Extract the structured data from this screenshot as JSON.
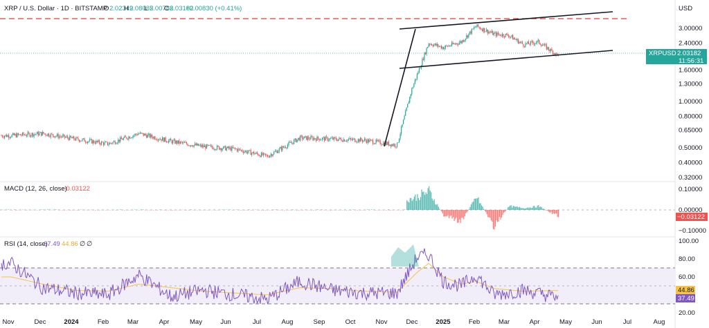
{
  "header": {
    "title": "XRP / U.S. Dollar · 1D · BITSTAMP",
    "ohlc": [
      {
        "label": "O",
        "value": "2.02349"
      },
      {
        "label": "H",
        "value": "2.08085"
      },
      {
        "label": "L",
        "value": "2.00788"
      },
      {
        "label": "C",
        "value": "2.03182"
      }
    ],
    "change": "+0.00830 (+0.41%)",
    "currency": "USD"
  },
  "price_tag": {
    "symbol": "XRPUSD",
    "value": "2.03182",
    "countdown": "11:56:31"
  },
  "macd": {
    "title": "MACD (12, 26, close)",
    "value": "−0.03122",
    "tag": "−0.03122"
  },
  "rsi": {
    "title": "RSI (14, close)",
    "value1": "37.49",
    "value2": "44.86",
    "na1": "∅",
    "na2": "∅",
    "tag1": "44.86",
    "tag2": "37.49"
  },
  "colors": {
    "up": "#26a69a",
    "down": "#ef5350",
    "resistance": "#e53935",
    "rsi_line": "#7e57c2",
    "rsi_ma": "#f6c344",
    "rsi_band": "#ede7f6",
    "price_tag": "#26a69a"
  },
  "chart_data": [
    {
      "type": "candlestick",
      "title": "XRP / U.S. Dollar · 1D · BITSTAMP",
      "scale": "log",
      "x": [
        "2023-11-01",
        "2023-12-01",
        "2024-01-01",
        "2024-02-01",
        "2024-03-01",
        "2024-04-01",
        "2024-05-01",
        "2024-06-01",
        "2024-07-01",
        "2024-08-01",
        "2024-09-01",
        "2024-10-01",
        "2024-11-01",
        "2024-11-15",
        "2024-12-01",
        "2024-12-15",
        "2025-01-01",
        "2025-01-15",
        "2025-02-01",
        "2025-02-15",
        "2025-03-01",
        "2025-03-15",
        "2025-04-01"
      ],
      "close": [
        0.6,
        0.62,
        0.57,
        0.53,
        0.62,
        0.55,
        0.51,
        0.49,
        0.44,
        0.58,
        0.57,
        0.56,
        0.52,
        1.2,
        2.4,
        2.25,
        2.45,
        3.1,
        2.75,
        2.7,
        2.35,
        2.45,
        2.03
      ],
      "yticks": [
        "3.00000",
        "2.40000",
        "1.60000",
        "1.30000",
        "1.00000",
        "0.80000",
        "0.65000",
        "0.50000",
        "0.40000",
        "0.32000"
      ],
      "xticks": [
        "Nov",
        "Dec",
        "2024",
        "Feb",
        "Mar",
        "Apr",
        "May",
        "Jun",
        "Jul",
        "Aug",
        "Sep",
        "Oct",
        "Nov",
        "Dec",
        "2025",
        "Feb",
        "Mar",
        "Apr",
        "May",
        "Jun",
        "Jul",
        "Aug"
      ],
      "resistance": 3.55,
      "last_price": 2.03182
    },
    {
      "type": "histogram",
      "title": "MACD (12, 26, close)",
      "x": [
        "2024-11-15",
        "2024-12-01",
        "2024-12-15",
        "2025-01-01",
        "2025-01-15",
        "2025-02-01",
        "2025-02-15",
        "2025-03-01",
        "2025-03-15",
        "2025-04-01"
      ],
      "values": [
        0.06,
        0.1,
        -0.03,
        -0.06,
        0.07,
        -0.09,
        0.02,
        0.01,
        0.02,
        -0.03
      ],
      "yticks": [
        "0.10000",
        "0.00000",
        "−0.10000"
      ]
    },
    {
      "type": "line",
      "title": "RSI (14, close)",
      "x": [
        "2023-11-01",
        "2023-12-01",
        "2024-01-01",
        "2024-02-01",
        "2024-03-01",
        "2024-04-01",
        "2024-05-01",
        "2024-06-01",
        "2024-07-01",
        "2024-08-01",
        "2024-09-01",
        "2024-10-01",
        "2024-11-01",
        "2024-11-20",
        "2024-12-01",
        "2024-12-15",
        "2025-01-01",
        "2025-01-15",
        "2025-02-01",
        "2025-03-01",
        "2025-04-01"
      ],
      "series": [
        {
          "values": [
            75,
            48,
            42,
            40,
            62,
            38,
            45,
            40,
            35,
            55,
            45,
            42,
            42,
            82,
            85,
            55,
            50,
            62,
            40,
            45,
            37.49
          ]
        },
        {
          "values": [
            60,
            52,
            45,
            44,
            52,
            48,
            44,
            42,
            40,
            48,
            47,
            44,
            43,
            65,
            75,
            60,
            52,
            55,
            47,
            44,
            44.86
          ]
        }
      ],
      "yticks": [
        "100.00",
        "80.00",
        "60.00",
        "40.00",
        "20.00"
      ],
      "bands": [
        70,
        50,
        30
      ]
    }
  ]
}
